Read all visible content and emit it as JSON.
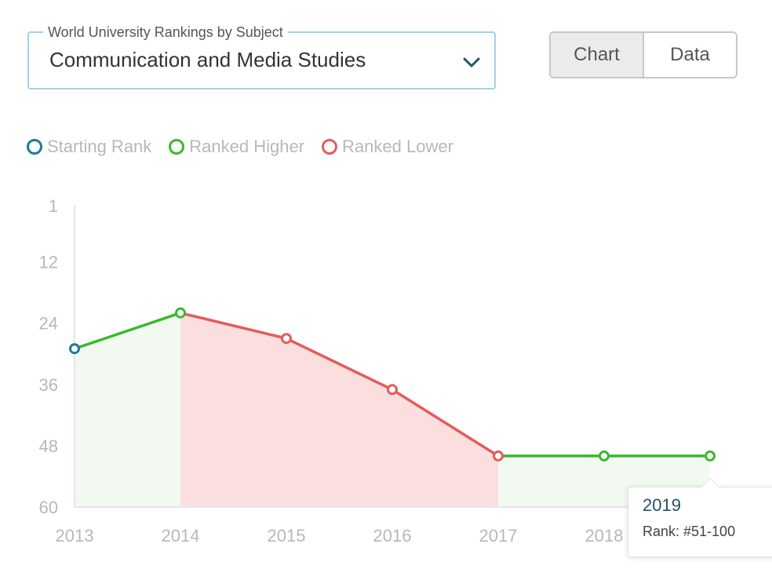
{
  "selector": {
    "legend": "World University Rankings by Subject",
    "value": "Communication and Media Studies"
  },
  "view_toggle": {
    "chart_label": "Chart",
    "data_label": "Data",
    "active": "Chart"
  },
  "legend": {
    "items": [
      {
        "label": "Starting Rank",
        "color": "#1a7a99"
      },
      {
        "label": "Ranked Higher",
        "color": "#3cb82e"
      },
      {
        "label": "Ranked Lower",
        "color": "#e55b5b"
      }
    ]
  },
  "tooltip": {
    "year": "2019",
    "rank_text": "Rank: #51-100"
  },
  "chart_data": {
    "type": "line",
    "title": "",
    "xlabel": "",
    "ylabel": "",
    "y_inverted": true,
    "ylim": [
      1,
      60
    ],
    "yticks": [
      1,
      12,
      24,
      36,
      48,
      60
    ],
    "categories": [
      "2013",
      "2014",
      "2015",
      "2016",
      "2017",
      "2018",
      "2019"
    ],
    "values": [
      29,
      22,
      27,
      37,
      50,
      50,
      50
    ],
    "point_status": [
      "start",
      "higher",
      "lower",
      "lower",
      "lower",
      "higher",
      "higher"
    ],
    "colors": {
      "start": "#1a7a99",
      "higher": "#3cb82e",
      "lower": "#e55b5b",
      "higher_fill": "#f1f9f0",
      "lower_fill": "#fbdfdf"
    },
    "grid": false
  }
}
